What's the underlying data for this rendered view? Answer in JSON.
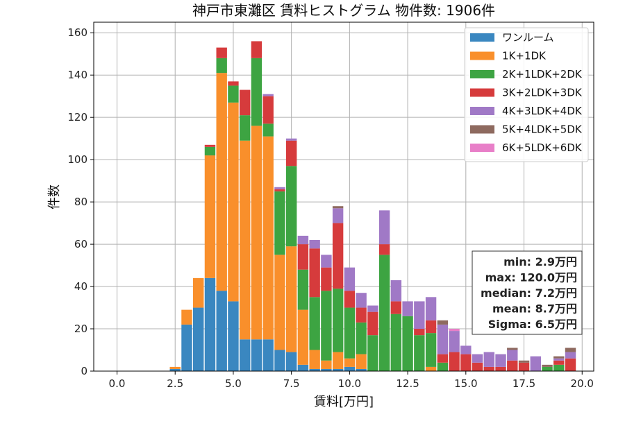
{
  "chart_data": {
    "type": "bar",
    "stacked": true,
    "title": "神戸市東灘区 賃料ヒストグラム  物件数: 1906件",
    "xlabel": "賃料[万円]",
    "ylabel": "件数",
    "xlim": [
      -1.0,
      20.5
    ],
    "ylim": [
      0,
      165
    ],
    "xticks": [
      0.0,
      2.5,
      5.0,
      7.5,
      10.0,
      12.5,
      15.0,
      17.5,
      20.0
    ],
    "xtick_labels": [
      "0.0",
      "2.5",
      "5.0",
      "7.5",
      "10.0",
      "12.5",
      "15.0",
      "17.5",
      "20.0"
    ],
    "yticks": [
      0,
      20,
      40,
      60,
      80,
      100,
      120,
      140,
      160
    ],
    "ytick_labels": [
      "0",
      "20",
      "40",
      "60",
      "80",
      "100",
      "120",
      "140",
      "160"
    ],
    "grid": true,
    "legend_position": "top-right",
    "bin_width": 0.5,
    "x": [
      2.5,
      3.0,
      3.5,
      4.0,
      4.5,
      5.0,
      5.5,
      6.0,
      6.5,
      7.0,
      7.5,
      8.0,
      8.5,
      9.0,
      9.5,
      10.0,
      10.5,
      11.0,
      11.5,
      12.0,
      12.5,
      13.0,
      13.5,
      14.0,
      14.5,
      15.0,
      15.5,
      16.0,
      16.5,
      17.0,
      17.5,
      18.0,
      18.5,
      19.0,
      19.5
    ],
    "series": [
      {
        "name": "ワンルーム",
        "color": "#3a87c0",
        "values": [
          1,
          22,
          30,
          44,
          38,
          33,
          15,
          15,
          15,
          10,
          9,
          3,
          1,
          1,
          1,
          2,
          1,
          0,
          0,
          0,
          0,
          0,
          0,
          0,
          0,
          0,
          0,
          0,
          0,
          0,
          0,
          0,
          0,
          0,
          0
        ]
      },
      {
        "name": "1K+1DK",
        "color": "#f98f2b",
        "values": [
          1,
          7,
          14,
          58,
          103,
          94,
          94,
          101,
          96,
          45,
          50,
          26,
          9,
          4,
          8,
          4,
          7,
          0,
          0,
          0,
          0,
          0,
          2,
          0,
          0,
          0,
          0,
          0,
          0,
          0,
          0,
          0,
          0,
          0,
          0
        ]
      },
      {
        "name": "2K+1LDK+2DK",
        "color": "#3da442",
        "values": [
          0,
          0,
          0,
          4,
          7,
          8,
          12,
          32,
          6,
          30,
          38,
          19,
          25,
          33,
          30,
          24,
          15,
          17,
          55,
          27,
          26,
          17,
          16,
          4,
          0,
          0,
          0,
          0,
          0,
          0,
          0,
          0,
          2,
          3,
          0
        ]
      },
      {
        "name": "3K+2LDK+3DK",
        "color": "#d63b3c",
        "values": [
          0,
          0,
          0,
          1,
          5,
          2,
          12,
          8,
          13,
          1,
          12,
          12,
          23,
          11,
          31,
          8,
          7,
          11,
          5,
          6,
          0,
          3,
          6,
          4,
          9,
          8,
          4,
          2,
          2,
          5,
          4,
          0,
          0,
          2,
          6
        ]
      },
      {
        "name": "4K+3LDK+4DK",
        "color": "#a079c6",
        "values": [
          0,
          0,
          0,
          0,
          0,
          0,
          0,
          0,
          1,
          1,
          1,
          4,
          4,
          6,
          7,
          11,
          7,
          3,
          16,
          10,
          7,
          13,
          11,
          14,
          10,
          4,
          4,
          7,
          6,
          5,
          0,
          7,
          0,
          1,
          3
        ]
      },
      {
        "name": "5K+4LDK+5DK",
        "color": "#8e6a5f",
        "values": [
          0,
          0,
          0,
          0,
          0,
          0,
          0,
          0,
          0,
          0,
          0,
          0,
          0,
          0,
          1,
          0,
          0,
          0,
          0,
          0,
          0,
          0,
          0,
          2,
          0,
          0,
          0,
          0,
          0,
          1,
          1,
          0,
          1,
          1,
          2
        ]
      },
      {
        "name": "6K+5LDK+6DK",
        "color": "#e87fc8",
        "values": [
          0,
          0,
          0,
          0,
          0,
          0,
          0,
          0,
          0,
          0,
          0,
          0,
          0,
          0,
          0,
          0,
          0,
          0,
          0,
          0,
          0,
          0,
          0,
          0,
          1,
          0,
          0,
          0,
          0,
          0,
          0,
          0,
          0,
          0,
          0
        ]
      }
    ],
    "stats": [
      "min: 2.9万円",
      "max: 120.0万円",
      "median: 7.2万円",
      "mean: 8.7万円",
      "Sigma: 6.5万円"
    ]
  }
}
